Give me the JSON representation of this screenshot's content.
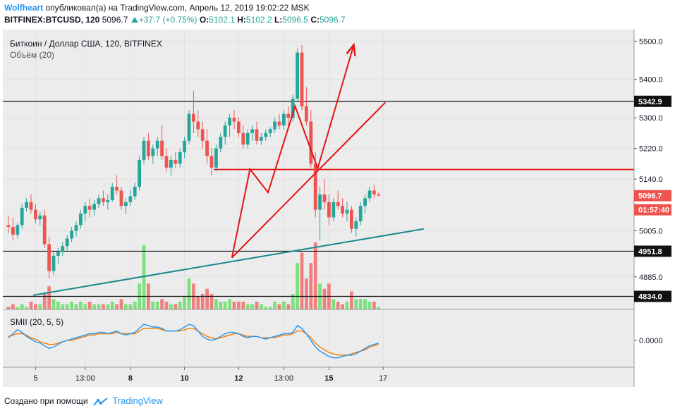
{
  "header": {
    "author": "Wolfheart",
    "published": "опубликовал(а) на TradingView.com, Апрель 12, 2019 19:02:22 MSK",
    "symbol": "BITFINEX:BTCUSD, 120",
    "last": "5096.7",
    "change": "+37.7 (+0.75%)",
    "o_label": "O:",
    "o": "5102.1",
    "h_label": "H:",
    "h": "5102.2",
    "l_label": "L:",
    "l": "5096.5",
    "c_label": "C:",
    "c": "5096.7"
  },
  "legend": {
    "instrument": "Биткоин / Доллар США, 120, BITFINEX",
    "volume": "Объём (20)",
    "indicator": "SMII (20, 5, 5)"
  },
  "footer": {
    "created_with": "Создано при помощи",
    "brand": "TradingView"
  },
  "colors": {
    "up": "#26a69a",
    "down": "#ef5350",
    "up_volume": "#7ee07e",
    "down_volume": "#f08080",
    "trend": "#1a8a8c",
    "drawing": "#e31515",
    "smii_fast": "#2196f3",
    "smii_slow": "#f57c00"
  },
  "chart_data": {
    "type": "candlestick",
    "price_axis": {
      "min": 4800,
      "max": 5530,
      "ticks": [
        "5500.0",
        "5400.0",
        "5300.0",
        "5220.0",
        "5140.0",
        "5005.0",
        "4885.0"
      ]
    },
    "time_axis": {
      "ticks": [
        "5",
        "13:00",
        "8",
        "10",
        "12",
        "13:00",
        "15",
        "17"
      ],
      "bold_ticks": [
        "8",
        "10",
        "12",
        "15"
      ],
      "slot_ticks": [
        6,
        17,
        27,
        39,
        51,
        61,
        71,
        83
      ]
    },
    "price_labels": [
      {
        "value": 5342.9,
        "text": "5342.9",
        "style": "level"
      },
      {
        "value": 5096.7,
        "text": "5096.7",
        "style": "last"
      },
      {
        "value": 5060,
        "text": "01:57:40",
        "style": "countdown"
      },
      {
        "value": 4951.8,
        "text": "4951.8",
        "style": "level"
      },
      {
        "value": 4834.0,
        "text": "4834.0",
        "style": "level"
      }
    ],
    "horizontal_levels": [
      {
        "value": 5342.9,
        "color": "black"
      },
      {
        "value": 4951.8,
        "color": "black"
      },
      {
        "value": 4834.0,
        "color": "black"
      },
      {
        "value": 5165,
        "color": "drawing",
        "from_slot": 45.5
      }
    ],
    "trendline": {
      "p1": [
        5.5,
        4837
      ],
      "p2": [
        92.0,
        5010
      ]
    },
    "projection": {
      "lines": [
        [
          [
            49.5,
            4935
          ],
          [
            53.5,
            5166
          ],
          [
            57.5,
            5105
          ],
          [
            63.5,
            5330
          ],
          [
            68.5,
            5168
          ],
          [
            76.5,
            5490
          ]
        ],
        [
          [
            49.5,
            4935
          ],
          [
            83.5,
            5340
          ]
        ]
      ]
    },
    "candles": [
      [
        5020,
        5045,
        5000,
        5015
      ],
      [
        5015,
        5040,
        4980,
        4995
      ],
      [
        4995,
        5025,
        4985,
        5020
      ],
      [
        5020,
        5075,
        5010,
        5065
      ],
      [
        5065,
        5090,
        5055,
        5080
      ],
      [
        5080,
        5100,
        5050,
        5060
      ],
      [
        5060,
        5075,
        5025,
        5035
      ],
      [
        5035,
        5055,
        5020,
        5045
      ],
      [
        5045,
        5060,
        4960,
        4970
      ],
      [
        4970,
        4990,
        4880,
        4900
      ],
      [
        4900,
        4950,
        4890,
        4940
      ],
      [
        4940,
        4960,
        4920,
        4950
      ],
      [
        4950,
        4975,
        4940,
        4965
      ],
      [
        4965,
        4995,
        4955,
        4985
      ],
      [
        4985,
        5015,
        4975,
        5005
      ],
      [
        5005,
        5030,
        4990,
        5020
      ],
      [
        5020,
        5060,
        5010,
        5050
      ],
      [
        5050,
        5080,
        5030,
        5070
      ],
      [
        5070,
        5090,
        5040,
        5060
      ],
      [
        5060,
        5085,
        5045,
        5075
      ],
      [
        5075,
        5100,
        5065,
        5090
      ],
      [
        5090,
        5110,
        5070,
        5080
      ],
      [
        5080,
        5100,
        5060,
        5085
      ],
      [
        5085,
        5130,
        5080,
        5120
      ],
      [
        5120,
        5150,
        5100,
        5110
      ],
      [
        5110,
        5120,
        5060,
        5070
      ],
      [
        5070,
        5090,
        5050,
        5080
      ],
      [
        5080,
        5110,
        5070,
        5095
      ],
      [
        5095,
        5130,
        5085,
        5120
      ],
      [
        5120,
        5200,
        5110,
        5190
      ],
      [
        5190,
        5250,
        5180,
        5240
      ],
      [
        5240,
        5260,
        5190,
        5200
      ],
      [
        5200,
        5230,
        5180,
        5220
      ],
      [
        5220,
        5250,
        5200,
        5240
      ],
      [
        5240,
        5280,
        5190,
        5200
      ],
      [
        5200,
        5220,
        5160,
        5170
      ],
      [
        5170,
        5200,
        5150,
        5190
      ],
      [
        5190,
        5210,
        5170,
        5180
      ],
      [
        5180,
        5220,
        5170,
        5210
      ],
      [
        5210,
        5250,
        5195,
        5240
      ],
      [
        5240,
        5320,
        5230,
        5310
      ],
      [
        5310,
        5370,
        5260,
        5290
      ],
      [
        5290,
        5320,
        5250,
        5270
      ],
      [
        5270,
        5290,
        5220,
        5240
      ],
      [
        5240,
        5270,
        5180,
        5200
      ],
      [
        5200,
        5220,
        5150,
        5170
      ],
      [
        5170,
        5230,
        5160,
        5220
      ],
      [
        5220,
        5260,
        5210,
        5250
      ],
      [
        5250,
        5290,
        5230,
        5280
      ],
      [
        5280,
        5310,
        5250,
        5300
      ],
      [
        5300,
        5320,
        5270,
        5290
      ],
      [
        5290,
        5300,
        5250,
        5260
      ],
      [
        5260,
        5280,
        5220,
        5230
      ],
      [
        5230,
        5270,
        5220,
        5260
      ],
      [
        5260,
        5280,
        5240,
        5270
      ],
      [
        5270,
        5290,
        5230,
        5240
      ],
      [
        5240,
        5260,
        5230,
        5250
      ],
      [
        5250,
        5270,
        5240,
        5260
      ],
      [
        5260,
        5275,
        5250,
        5270
      ],
      [
        5270,
        5300,
        5260,
        5290
      ],
      [
        5290,
        5310,
        5270,
        5280
      ],
      [
        5280,
        5320,
        5270,
        5310
      ],
      [
        5310,
        5330,
        5280,
        5300
      ],
      [
        5300,
        5360,
        5290,
        5350
      ],
      [
        5350,
        5480,
        5340,
        5470
      ],
      [
        5470,
        5490,
        5320,
        5330
      ],
      [
        5330,
        5380,
        5280,
        5290
      ],
      [
        5290,
        5320,
        5170,
        5180
      ],
      [
        5180,
        5210,
        5040,
        5060
      ],
      [
        5060,
        5120,
        4980,
        5100
      ],
      [
        5100,
        5140,
        5060,
        5080
      ],
      [
        5080,
        5100,
        5020,
        5040
      ],
      [
        5040,
        5090,
        5030,
        5080
      ],
      [
        5080,
        5110,
        5060,
        5070
      ],
      [
        5070,
        5090,
        5040,
        5050
      ],
      [
        5050,
        5080,
        5030,
        5060
      ],
      [
        5060,
        5070,
        5000,
        5010
      ],
      [
        5010,
        5040,
        4990,
        5030
      ],
      [
        5030,
        5080,
        5020,
        5070
      ],
      [
        5070,
        5100,
        5050,
        5090
      ],
      [
        5090,
        5120,
        5080,
        5110
      ],
      [
        5110,
        5125,
        5090,
        5100
      ],
      [
        5100,
        5105,
        5095,
        5097
      ]
    ],
    "volume": [
      [
        1,
        0
      ],
      [
        2,
        0
      ],
      [
        1,
        1
      ],
      [
        2,
        1
      ],
      [
        1,
        1
      ],
      [
        3,
        0
      ],
      [
        2,
        0
      ],
      [
        2,
        1
      ],
      [
        6,
        0
      ],
      [
        9,
        0
      ],
      [
        4,
        1
      ],
      [
        3,
        1
      ],
      [
        2,
        1
      ],
      [
        2,
        1
      ],
      [
        3,
        1
      ],
      [
        2,
        1
      ],
      [
        3,
        1
      ],
      [
        2,
        1
      ],
      [
        3,
        0
      ],
      [
        2,
        1
      ],
      [
        2,
        1
      ],
      [
        2,
        0
      ],
      [
        2,
        1
      ],
      [
        3,
        1
      ],
      [
        2,
        0
      ],
      [
        4,
        0
      ],
      [
        2,
        1
      ],
      [
        2,
        1
      ],
      [
        3,
        1
      ],
      [
        10,
        1
      ],
      [
        25,
        1
      ],
      [
        10,
        0
      ],
      [
        3,
        1
      ],
      [
        3,
        1
      ],
      [
        4,
        0
      ],
      [
        3,
        0
      ],
      [
        2,
        1
      ],
      [
        2,
        0
      ],
      [
        3,
        1
      ],
      [
        5,
        1
      ],
      [
        12,
        1
      ],
      [
        10,
        0
      ],
      [
        5,
        0
      ],
      [
        6,
        0
      ],
      [
        8,
        0
      ],
      [
        6,
        0
      ],
      [
        4,
        1
      ],
      [
        3,
        1
      ],
      [
        3,
        1
      ],
      [
        4,
        1
      ],
      [
        3,
        0
      ],
      [
        3,
        0
      ],
      [
        3,
        0
      ],
      [
        2,
        1
      ],
      [
        2,
        1
      ],
      [
        3,
        0
      ],
      [
        2,
        1
      ],
      [
        1,
        1
      ],
      [
        1,
        1
      ],
      [
        3,
        1
      ],
      [
        2,
        0
      ],
      [
        3,
        1
      ],
      [
        2,
        0
      ],
      [
        6,
        1
      ],
      [
        18,
        1
      ],
      [
        22,
        0
      ],
      [
        12,
        0
      ],
      [
        18,
        0
      ],
      [
        26,
        0
      ],
      [
        10,
        1
      ],
      [
        8,
        0
      ],
      [
        10,
        0
      ],
      [
        4,
        1
      ],
      [
        3,
        0
      ],
      [
        2,
        0
      ],
      [
        3,
        1
      ],
      [
        7,
        0
      ],
      [
        4,
        1
      ],
      [
        4,
        1
      ],
      [
        4,
        1
      ],
      [
        3,
        1
      ],
      [
        3,
        0
      ],
      [
        1,
        1
      ]
    ],
    "smii": {
      "zero_label": "0.0000",
      "fast": [
        0.02,
        0.05,
        0.08,
        0.06,
        0.03,
        0.01,
        -0.01,
        -0.02,
        -0.04,
        -0.06,
        -0.05,
        -0.03,
        -0.01,
        0.0,
        0.01,
        0.02,
        0.03,
        0.04,
        0.05,
        0.05,
        0.06,
        0.06,
        0.05,
        0.06,
        0.07,
        0.05,
        0.04,
        0.05,
        0.06,
        0.09,
        0.12,
        0.11,
        0.1,
        0.1,
        0.09,
        0.07,
        0.07,
        0.07,
        0.08,
        0.1,
        0.12,
        0.11,
        0.07,
        0.03,
        0.01,
        0.0,
        0.01,
        0.03,
        0.05,
        0.06,
        0.06,
        0.05,
        0.03,
        0.02,
        0.03,
        0.03,
        0.02,
        0.01,
        0.02,
        0.03,
        0.04,
        0.05,
        0.05,
        0.06,
        0.11,
        0.09,
        0.05,
        0.0,
        -0.05,
        -0.08,
        -0.1,
        -0.12,
        -0.13,
        -0.13,
        -0.12,
        -0.11,
        -0.11,
        -0.1,
        -0.08,
        -0.06,
        -0.04,
        -0.03,
        -0.02
      ],
      "slow": [
        0.03,
        0.04,
        0.05,
        0.05,
        0.04,
        0.02,
        0.01,
        -0.01,
        -0.02,
        -0.03,
        -0.03,
        -0.02,
        -0.01,
        0.0,
        0.0,
        0.01,
        0.02,
        0.03,
        0.04,
        0.04,
        0.05,
        0.05,
        0.05,
        0.05,
        0.06,
        0.05,
        0.05,
        0.05,
        0.05,
        0.07,
        0.09,
        0.09,
        0.09,
        0.09,
        0.08,
        0.07,
        0.07,
        0.07,
        0.07,
        0.08,
        0.09,
        0.09,
        0.07,
        0.05,
        0.03,
        0.02,
        0.01,
        0.02,
        0.03,
        0.04,
        0.05,
        0.05,
        0.04,
        0.03,
        0.03,
        0.03,
        0.02,
        0.02,
        0.02,
        0.02,
        0.03,
        0.04,
        0.04,
        0.05,
        0.07,
        0.07,
        0.05,
        0.02,
        -0.02,
        -0.05,
        -0.07,
        -0.09,
        -0.1,
        -0.11,
        -0.11,
        -0.11,
        -0.1,
        -0.09,
        -0.08,
        -0.07,
        -0.05,
        -0.04,
        -0.03
      ]
    }
  }
}
